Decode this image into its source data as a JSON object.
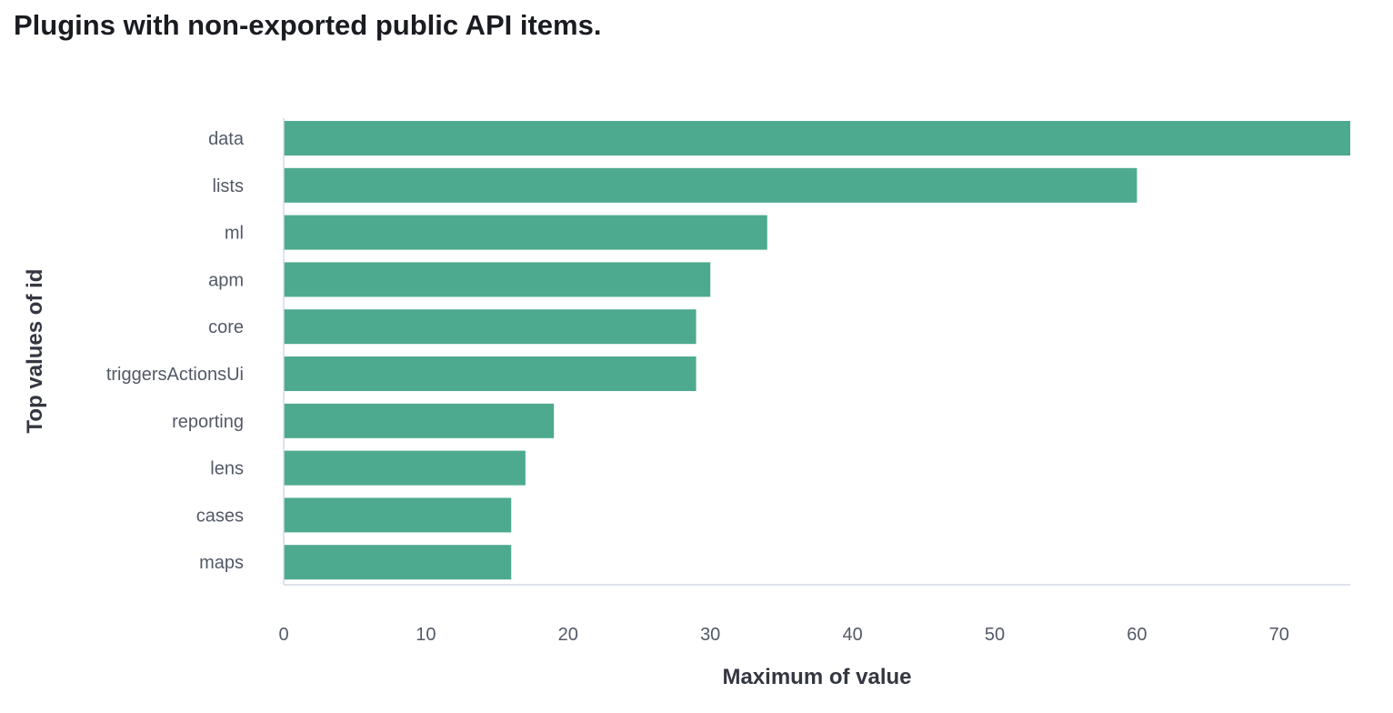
{
  "chart_data": {
    "type": "bar",
    "orientation": "horizontal",
    "title": "Plugins with non-exported public API items.",
    "xlabel": "Maximum of value",
    "ylabel": "Top values of id",
    "categories": [
      "data",
      "lists",
      "ml",
      "apm",
      "core",
      "triggersActionsUi",
      "reporting",
      "lens",
      "cases",
      "maps"
    ],
    "values": [
      75,
      60,
      34,
      30,
      29,
      29,
      19,
      17,
      16,
      16
    ],
    "xlim": [
      0,
      75
    ],
    "xticks": [
      "0",
      "10",
      "20",
      "30",
      "40",
      "50",
      "60",
      "70"
    ],
    "grid": false,
    "legend": "none",
    "colors": {
      "bar": "#4daa8e",
      "label": "#535966",
      "axis": "#d3dae6",
      "title": "#1a1c21"
    }
  }
}
